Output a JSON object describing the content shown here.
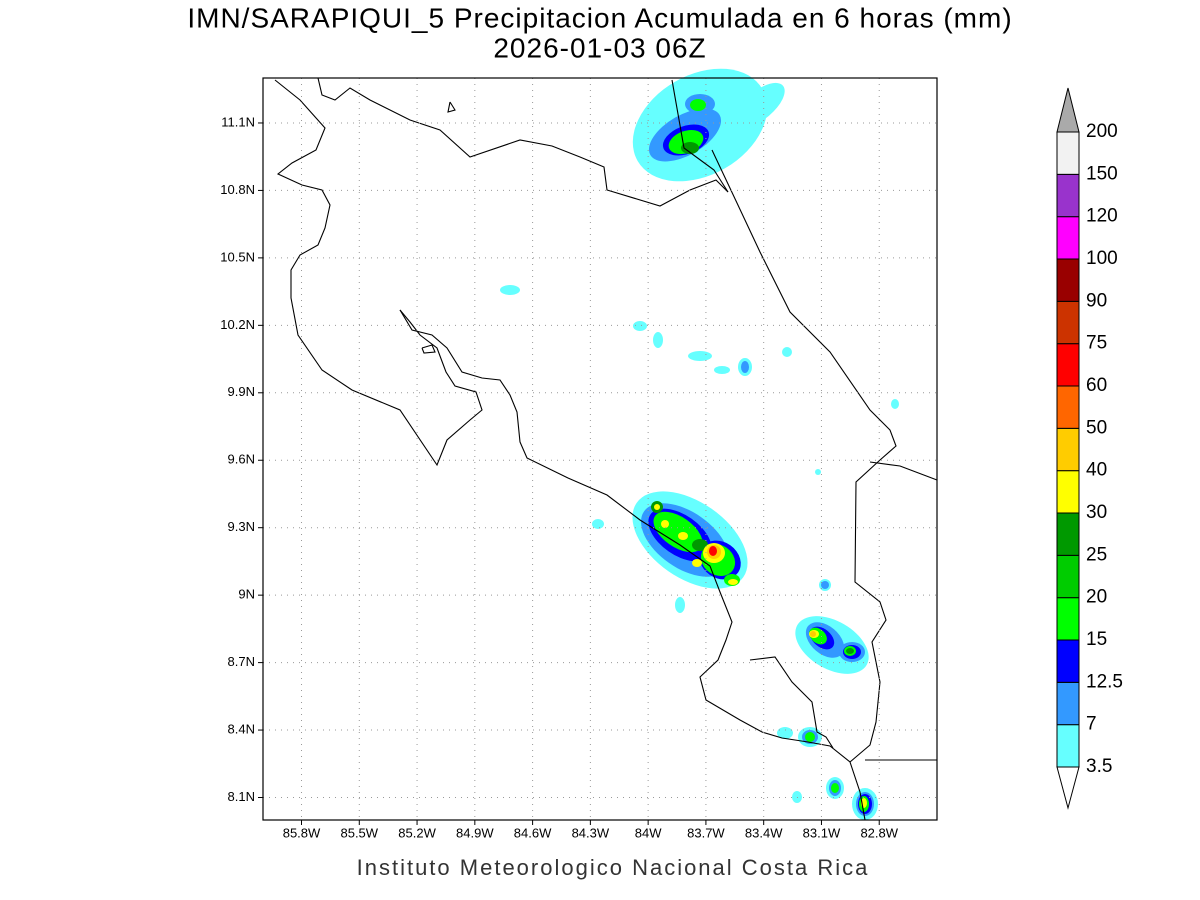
{
  "title": "IMN/SARAPIQUI_5 Precipitacion Acumulada en 6 horas (mm)",
  "subtitle": "2026-01-03 06Z",
  "map": {
    "xlim": [
      -86.0,
      -82.5
    ],
    "ylim": [
      8.0,
      11.3
    ],
    "xticks": [
      {
        "value": -85.8,
        "label": "85.8W"
      },
      {
        "value": -85.5,
        "label": "85.5W"
      },
      {
        "value": -85.2,
        "label": "85.2W"
      },
      {
        "value": -84.9,
        "label": "84.9W"
      },
      {
        "value": -84.6,
        "label": "84.6W"
      },
      {
        "value": -84.3,
        "label": "84.3W"
      },
      {
        "value": -84,
        "label": "84W"
      },
      {
        "value": -83.7,
        "label": "83.7W"
      },
      {
        "value": -83.4,
        "label": "83.4W"
      },
      {
        "value": -83.1,
        "label": "83.1W"
      },
      {
        "value": -82.8,
        "label": "82.8W"
      }
    ],
    "yticks": [
      {
        "value": 8.1,
        "label": "8.1N"
      },
      {
        "value": 8.4,
        "label": "8.4N"
      },
      {
        "value": 8.7,
        "label": "8.7N"
      },
      {
        "value": 9,
        "label": "9N"
      },
      {
        "value": 9.3,
        "label": "9.3N"
      },
      {
        "value": 9.6,
        "label": "9.6N"
      },
      {
        "value": 9.9,
        "label": "9.9N"
      },
      {
        "value": 10.2,
        "label": "10.2N"
      },
      {
        "value": 10.5,
        "label": "10.5N"
      },
      {
        "value": 10.8,
        "label": "10.8N"
      },
      {
        "value": 11.1,
        "label": "11.1N"
      }
    ],
    "grid": true
  },
  "colorbar": {
    "levels": [
      3.5,
      7,
      12.5,
      15,
      20,
      25,
      30,
      40,
      50,
      60,
      75,
      90,
      100,
      120,
      150,
      200
    ],
    "colors": [
      "#66ffff",
      "#3399ff",
      "#0000ff",
      "#00ff00",
      "#00cc00",
      "#009900",
      "#ffff00",
      "#ffcc00",
      "#ff6600",
      "#ff0000",
      "#cc3300",
      "#990000",
      "#ff00ff",
      "#9933cc",
      "#f2f2f2"
    ],
    "over_color": "#aaaaaa",
    "under_color": "#ffffff"
  },
  "credit": "Instituto Meteorologico Nacional Costa Rica"
}
